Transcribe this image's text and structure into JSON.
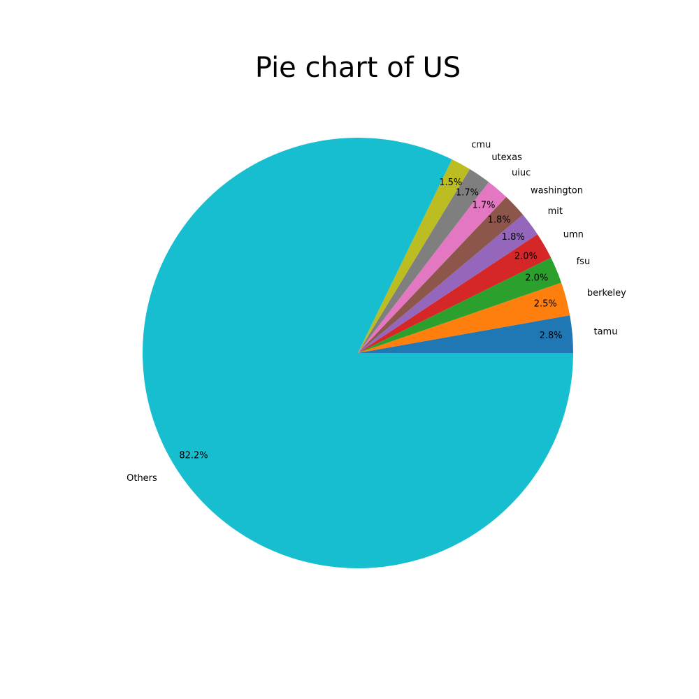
{
  "chart_data": {
    "type": "pie",
    "title": "Pie chart of US",
    "labels": [
      "tamu",
      "berkeley",
      "fsu",
      "umn",
      "mit",
      "washington",
      "uiuc",
      "utexas",
      "cmu",
      "Others"
    ],
    "values": [
      2.8,
      2.5,
      2.0,
      2.0,
      1.8,
      1.8,
      1.7,
      1.7,
      1.5,
      82.2
    ],
    "percent_labels": [
      "2.8%",
      "2.5%",
      "2.0%",
      "2.0%",
      "1.8%",
      "1.8%",
      "1.7%",
      "1.7%",
      "1.5%",
      "82.2%"
    ],
    "colors": [
      "#1f77b4",
      "#ff7f0e",
      "#2ca02c",
      "#d62728",
      "#9467bd",
      "#8c564b",
      "#e377c2",
      "#7f7f7f",
      "#bcbd22",
      "#17becf"
    ],
    "start_angle_deg": 0,
    "direction": "counterclockwise"
  }
}
